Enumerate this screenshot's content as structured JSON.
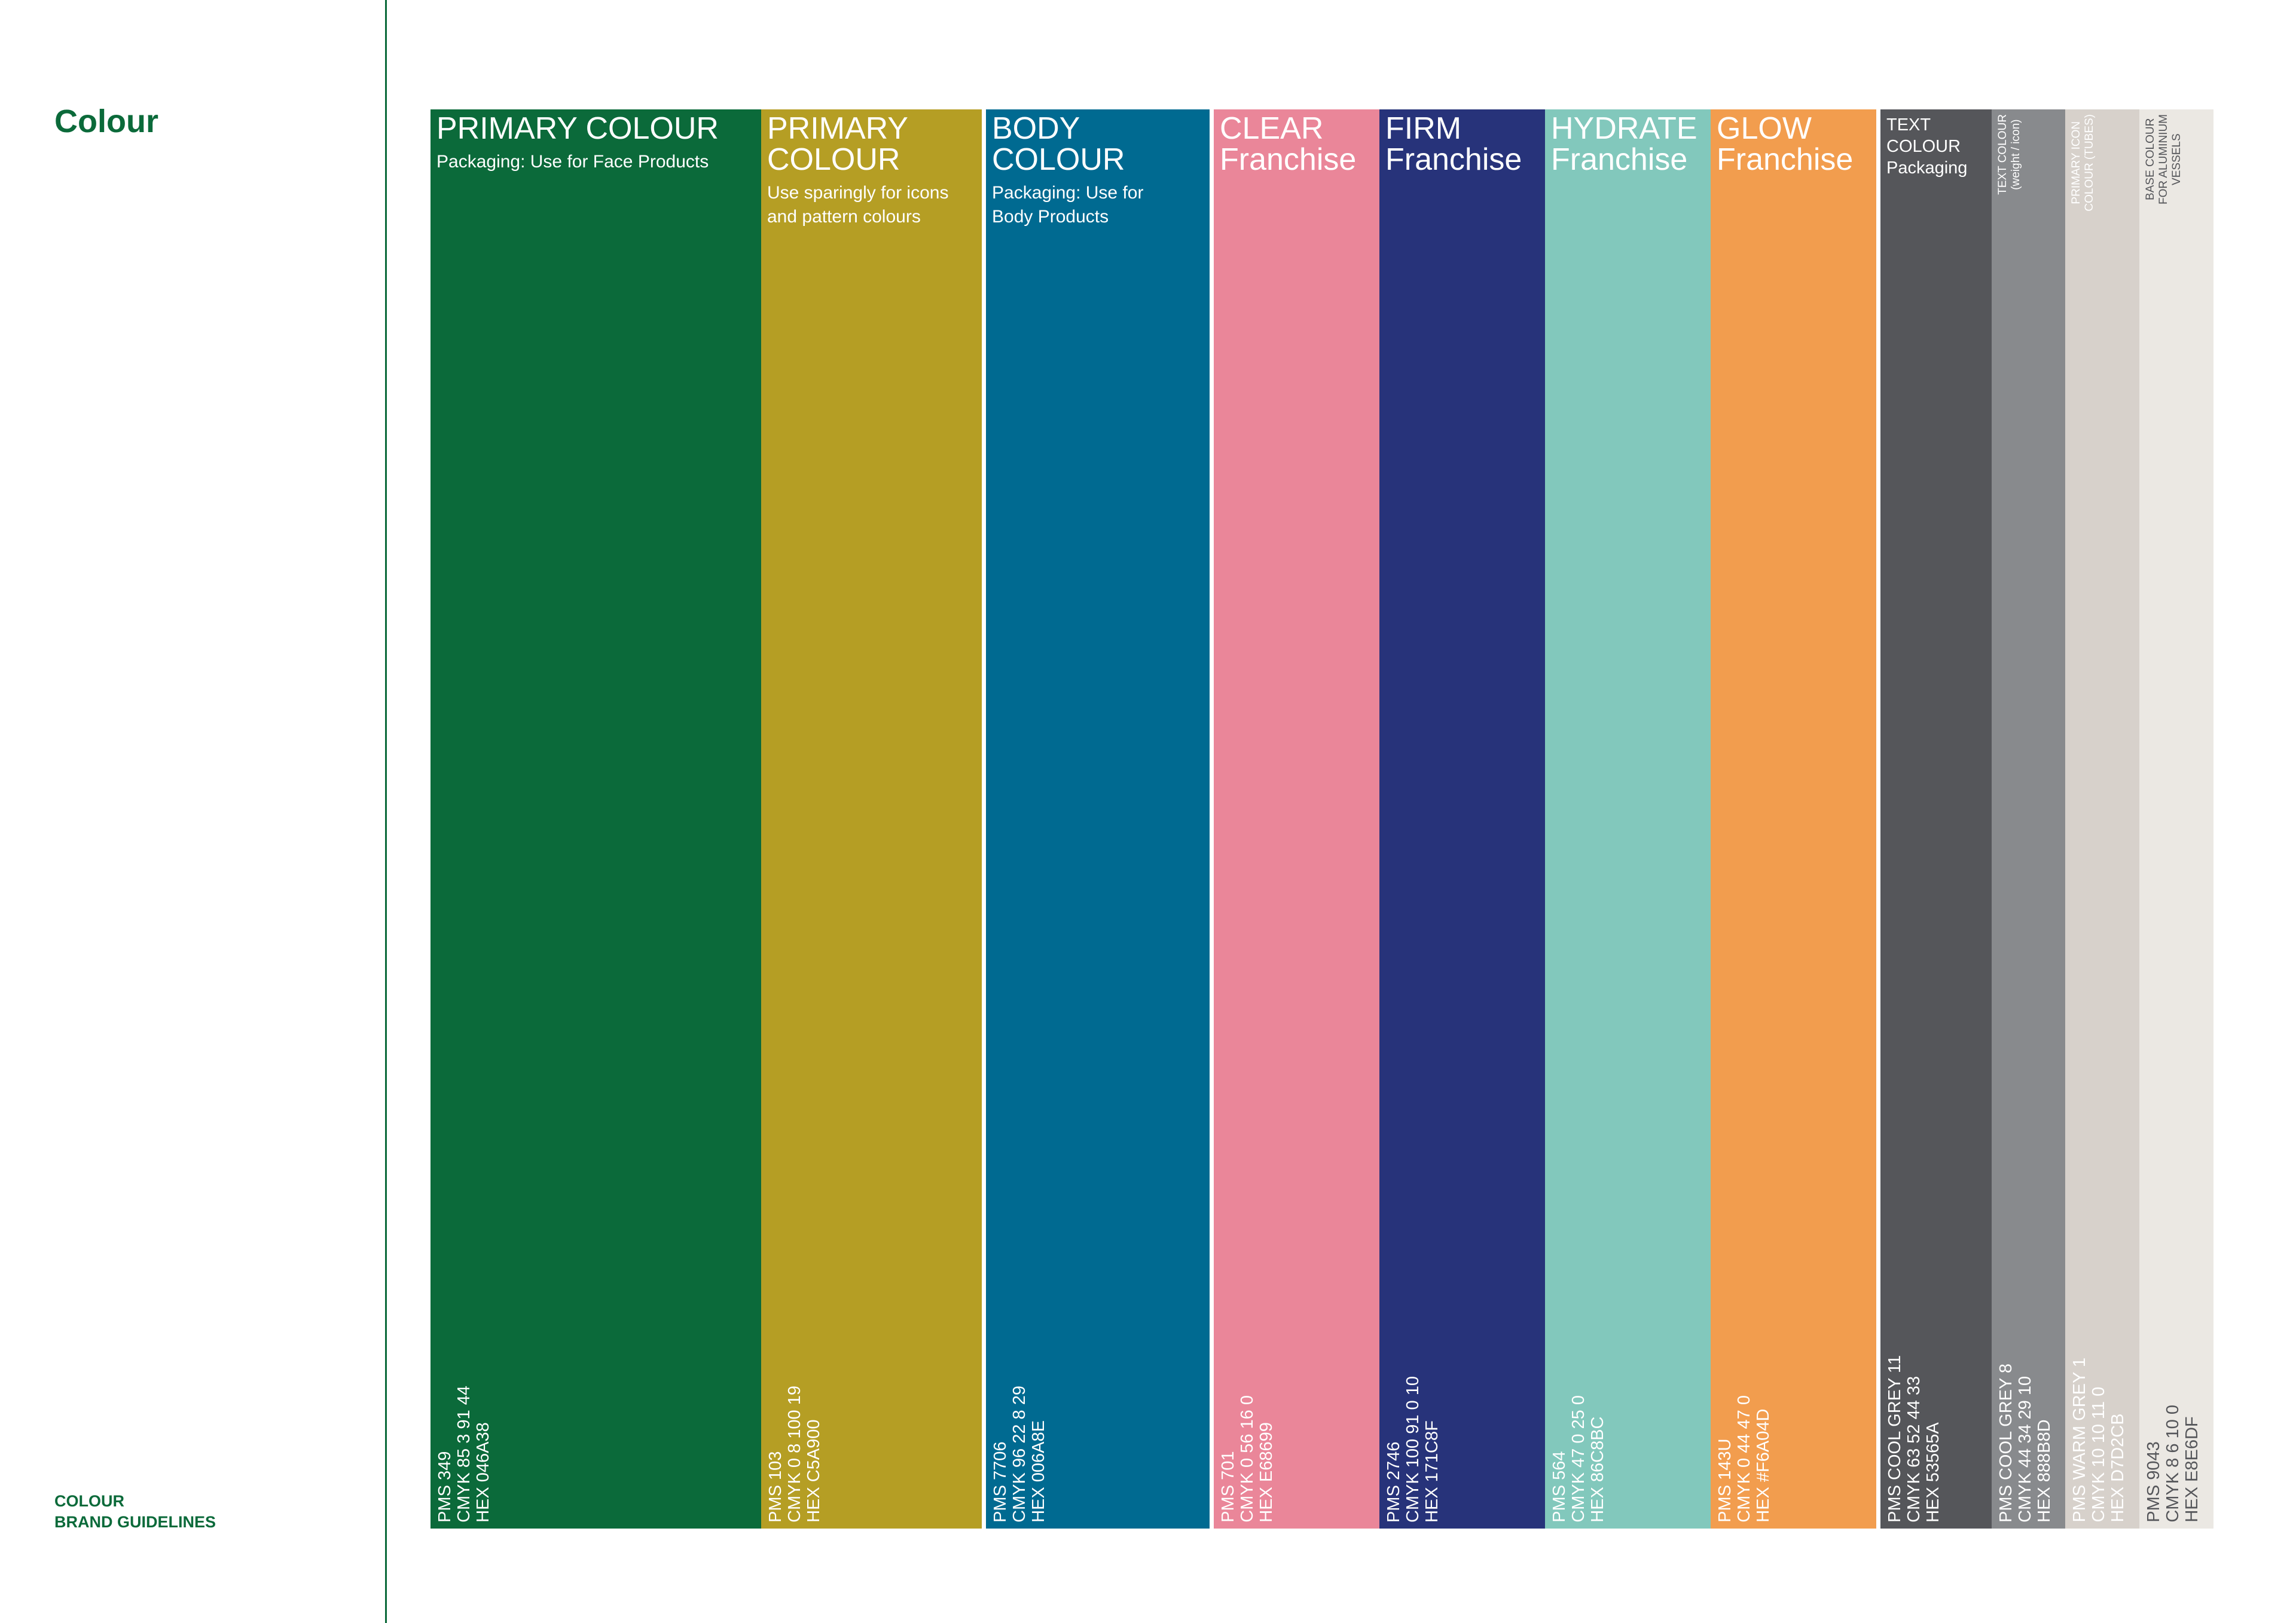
{
  "header": {
    "title": "Colour"
  },
  "footer": {
    "lines": [
      "COLOUR",
      "BRAND GUIDELINES"
    ]
  },
  "swatches": [
    {
      "title": [
        "PRIMARY COLOUR"
      ],
      "subtitle": [
        "Packaging: Use for Face Products"
      ],
      "specs": [
        "PMS 349",
        "CMYK 85 3 91 44",
        "HEX 046A38"
      ],
      "color": "#0b6a3a",
      "text_color": "#ffffff"
    },
    {
      "title": [
        "PRIMARY",
        "COLOUR"
      ],
      "subtitle": [
        "Use sparingly for icons",
        "and pattern colours"
      ],
      "specs": [
        "PMS 103",
        "CMYK 0 8 100 19",
        "HEX C5A900"
      ],
      "color": "#b59e24",
      "text_color": "#ffffff"
    },
    {
      "title": [
        "BODY",
        "COLOUR"
      ],
      "subtitle": [
        "Packaging: Use for",
        "Body Products"
      ],
      "specs": [
        "PMS 7706",
        "CMYK 96 22 8 29",
        "HEX 006A8E"
      ],
      "color": "#006a91",
      "text_color": "#ffffff"
    },
    {
      "title": [
        "CLEAR",
        "Franchise"
      ],
      "specs": [
        "PMS 701",
        "CMYK 0 56 16 0",
        "HEX E68699"
      ],
      "color": "#ea8699",
      "text_color": "#ffffff"
    },
    {
      "title": [
        "FIRM",
        "Franchise"
      ],
      "specs": [
        "PMS 2746",
        "CMYK 100 91 0 10",
        "HEX 171C8F"
      ],
      "color": "#27337a",
      "text_color": "#ffffff"
    },
    {
      "title": [
        "HYDRATE",
        "Franchise"
      ],
      "specs": [
        "PMS 564",
        "CMYK 47 0 25 0",
        "HEX 86C8BC"
      ],
      "color": "#82c8bc",
      "text_color": "#ffffff"
    },
    {
      "title": [
        "GLOW",
        "Franchise"
      ],
      "specs": [
        "PMS 143U",
        "CMYK 0 44 47 0",
        "HEX #F6A04D"
      ],
      "color": "#f29d4e",
      "text_color": "#ffffff"
    },
    {
      "label": [
        "TEXT",
        "COLOUR",
        "Packaging"
      ],
      "specs": [
        "PMS COOL GREY 11",
        "CMYK 63 52 44 33",
        "HEX 53565A"
      ],
      "color": "#55565a",
      "text_color": "#ffffff"
    },
    {
      "side_label": [
        "TEXT COLOUR",
        "(weight / icon)"
      ],
      "specs": [
        "PMS COOL GREY 8",
        "CMYK 44 34 29 10",
        "HEX 888B8D"
      ],
      "color": "#888a8d",
      "text_color": "#ffffff"
    },
    {
      "side_label": [
        "PRIMARY ICON",
        "COLOUR (TUBES)"
      ],
      "specs": [
        "PMS WARM GREY 1",
        "CMYK 10 10 11 0",
        "HEX D7D2CB"
      ],
      "color": "#d7d1cb",
      "text_color": "#ffffff"
    },
    {
      "side_label": [
        "BASE COLOUR",
        "FOR ALUMINIUM",
        "VESSELS"
      ],
      "specs": [
        "PMS 9043",
        "CMYK 8 6 10 0",
        "HEX E8E6DF"
      ],
      "color": "#ebe8e3",
      "text_color": "#55565a"
    }
  ]
}
